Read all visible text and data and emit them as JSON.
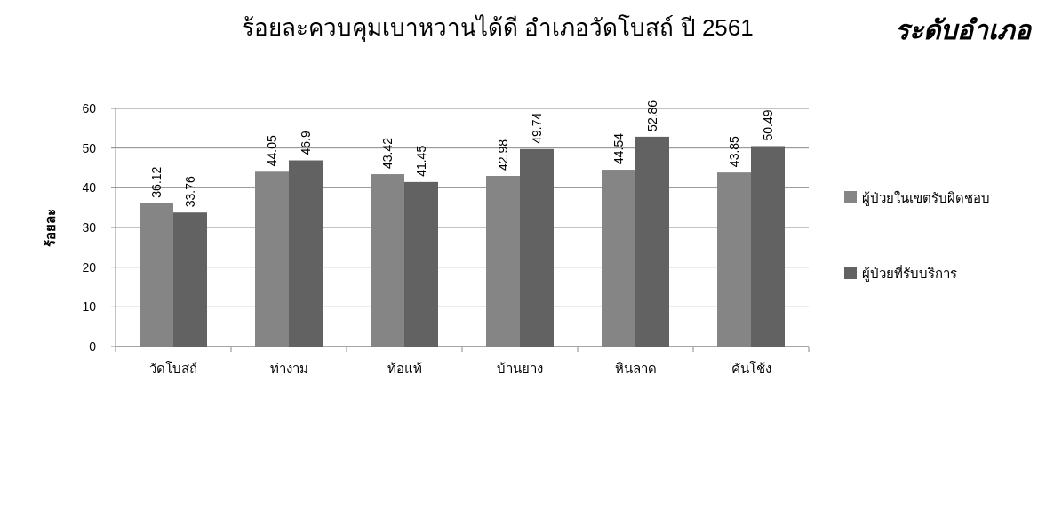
{
  "chart_data": {
    "type": "bar",
    "title": "ร้อยละควบคุมเบาหวานได้ดี อำเภอวัดโบสถ์ ปี 2561",
    "ylabel": "ร้อยละ",
    "annotations": [
      "ระดับอำเภอ"
    ],
    "categories": [
      "วัดโบสถ์",
      "ท่างาม",
      "ท้อแท้",
      "บ้านยาง",
      "หินลาด",
      "คันโช้ง"
    ],
    "series": [
      {
        "name": "ผู้ป่วยในเขตรับผิดชอบ",
        "color": "#858585",
        "values": [
          36.12,
          44.05,
          43.42,
          42.98,
          44.54,
          43.85
        ]
      },
      {
        "name": "ผู้ป่วยที่รับบริการ",
        "color": "#626262",
        "values": [
          33.76,
          46.9,
          41.45,
          49.74,
          52.86,
          50.49
        ]
      }
    ],
    "ylim": [
      0,
      60
    ],
    "yticks": [
      0,
      10,
      20,
      30,
      40,
      50,
      60
    ],
    "grid": "y",
    "legend": "right",
    "data_labels": true
  }
}
